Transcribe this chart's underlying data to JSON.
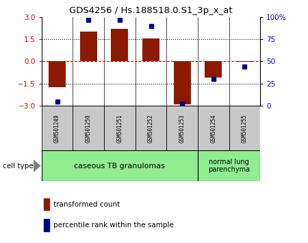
{
  "title": "GDS4256 / Hs.188518.0.S1_3p_x_at",
  "samples": [
    "GSM501249",
    "GSM501250",
    "GSM501251",
    "GSM501252",
    "GSM501253",
    "GSM501254",
    "GSM501255"
  ],
  "transformed_counts": [
    -1.75,
    2.0,
    2.2,
    1.55,
    -2.9,
    -1.1,
    -0.05
  ],
  "percentile_ranks": [
    5,
    97,
    97,
    90,
    2,
    30,
    44
  ],
  "ylim_left": [
    -3,
    3
  ],
  "ylim_right": [
    0,
    100
  ],
  "left_ticks": [
    -3,
    -1.5,
    0,
    1.5,
    3
  ],
  "right_ticks": [
    0,
    25,
    50,
    75,
    100
  ],
  "right_tick_labels": [
    "0",
    "25",
    "50",
    "75",
    "100%"
  ],
  "bar_color": "#8B1A00",
  "dot_color": "#00008B",
  "group1_label": "caseous TB granulomas",
  "group1_samples": [
    0,
    1,
    2,
    3,
    4
  ],
  "group2_label": "normal lung\nparenchyma",
  "group2_samples": [
    5,
    6
  ],
  "group1_color": "#90EE90",
  "group2_color": "#90EE90",
  "cell_type_label": "cell type",
  "legend_bar_label": "transformed count",
  "legend_dot_label": "percentile rank within the sample",
  "left_tick_color": "#CC0000",
  "right_tick_color": "#0000CC",
  "plot_bg": "#ffffff",
  "sample_box_color": "#C8C8C8",
  "hline0_color": "#CC0000",
  "hline_pm_color": "#000000"
}
